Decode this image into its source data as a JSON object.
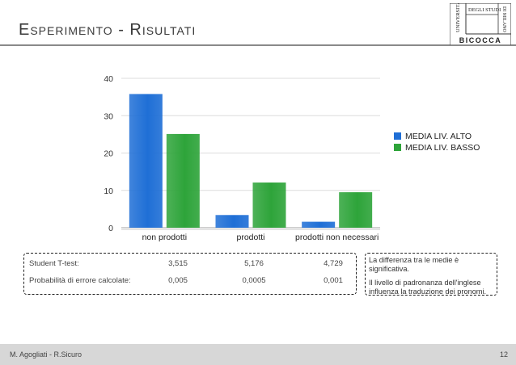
{
  "slide": {
    "title": "Esperimento - Risultati",
    "footer_author": "M. Agogliati - R.Sicuro",
    "page_number": "12"
  },
  "logo": {
    "line1": "UNIVERSITÀ",
    "line2": "DEGLI STUDI",
    "line3": "DI MILANO",
    "line4": "BICOCCA"
  },
  "chart_data": {
    "type": "bar",
    "categories": [
      "non prodotti",
      "prodotti",
      "prodotti non necessari"
    ],
    "series": [
      {
        "name": "MEDIA LIV. ALTO",
        "values": [
          35.8,
          3.4,
          1.6
        ],
        "color": "#1f6fd6"
      },
      {
        "name": "MEDIA LIV. BASSO",
        "values": [
          25.1,
          12.1,
          9.5
        ],
        "color": "#2ea43a"
      }
    ],
    "yticks": [
      0,
      10,
      20,
      30,
      40
    ],
    "ylim": [
      0,
      40
    ],
    "grid": true,
    "legend": "right"
  },
  "stats": {
    "rows": [
      {
        "label": "Student T-test:",
        "values": [
          "3,515",
          "5,176",
          "4,729"
        ]
      },
      {
        "label": "Probabilità di errore calcolate:",
        "values": [
          "0,005",
          "0,0005",
          "0,001"
        ]
      }
    ]
  },
  "note": {
    "line1": "La differenza tra le medie è significativa.",
    "line2": "Il livello di padronanza dell'inglese influenza la traduzione dei pronomi."
  }
}
